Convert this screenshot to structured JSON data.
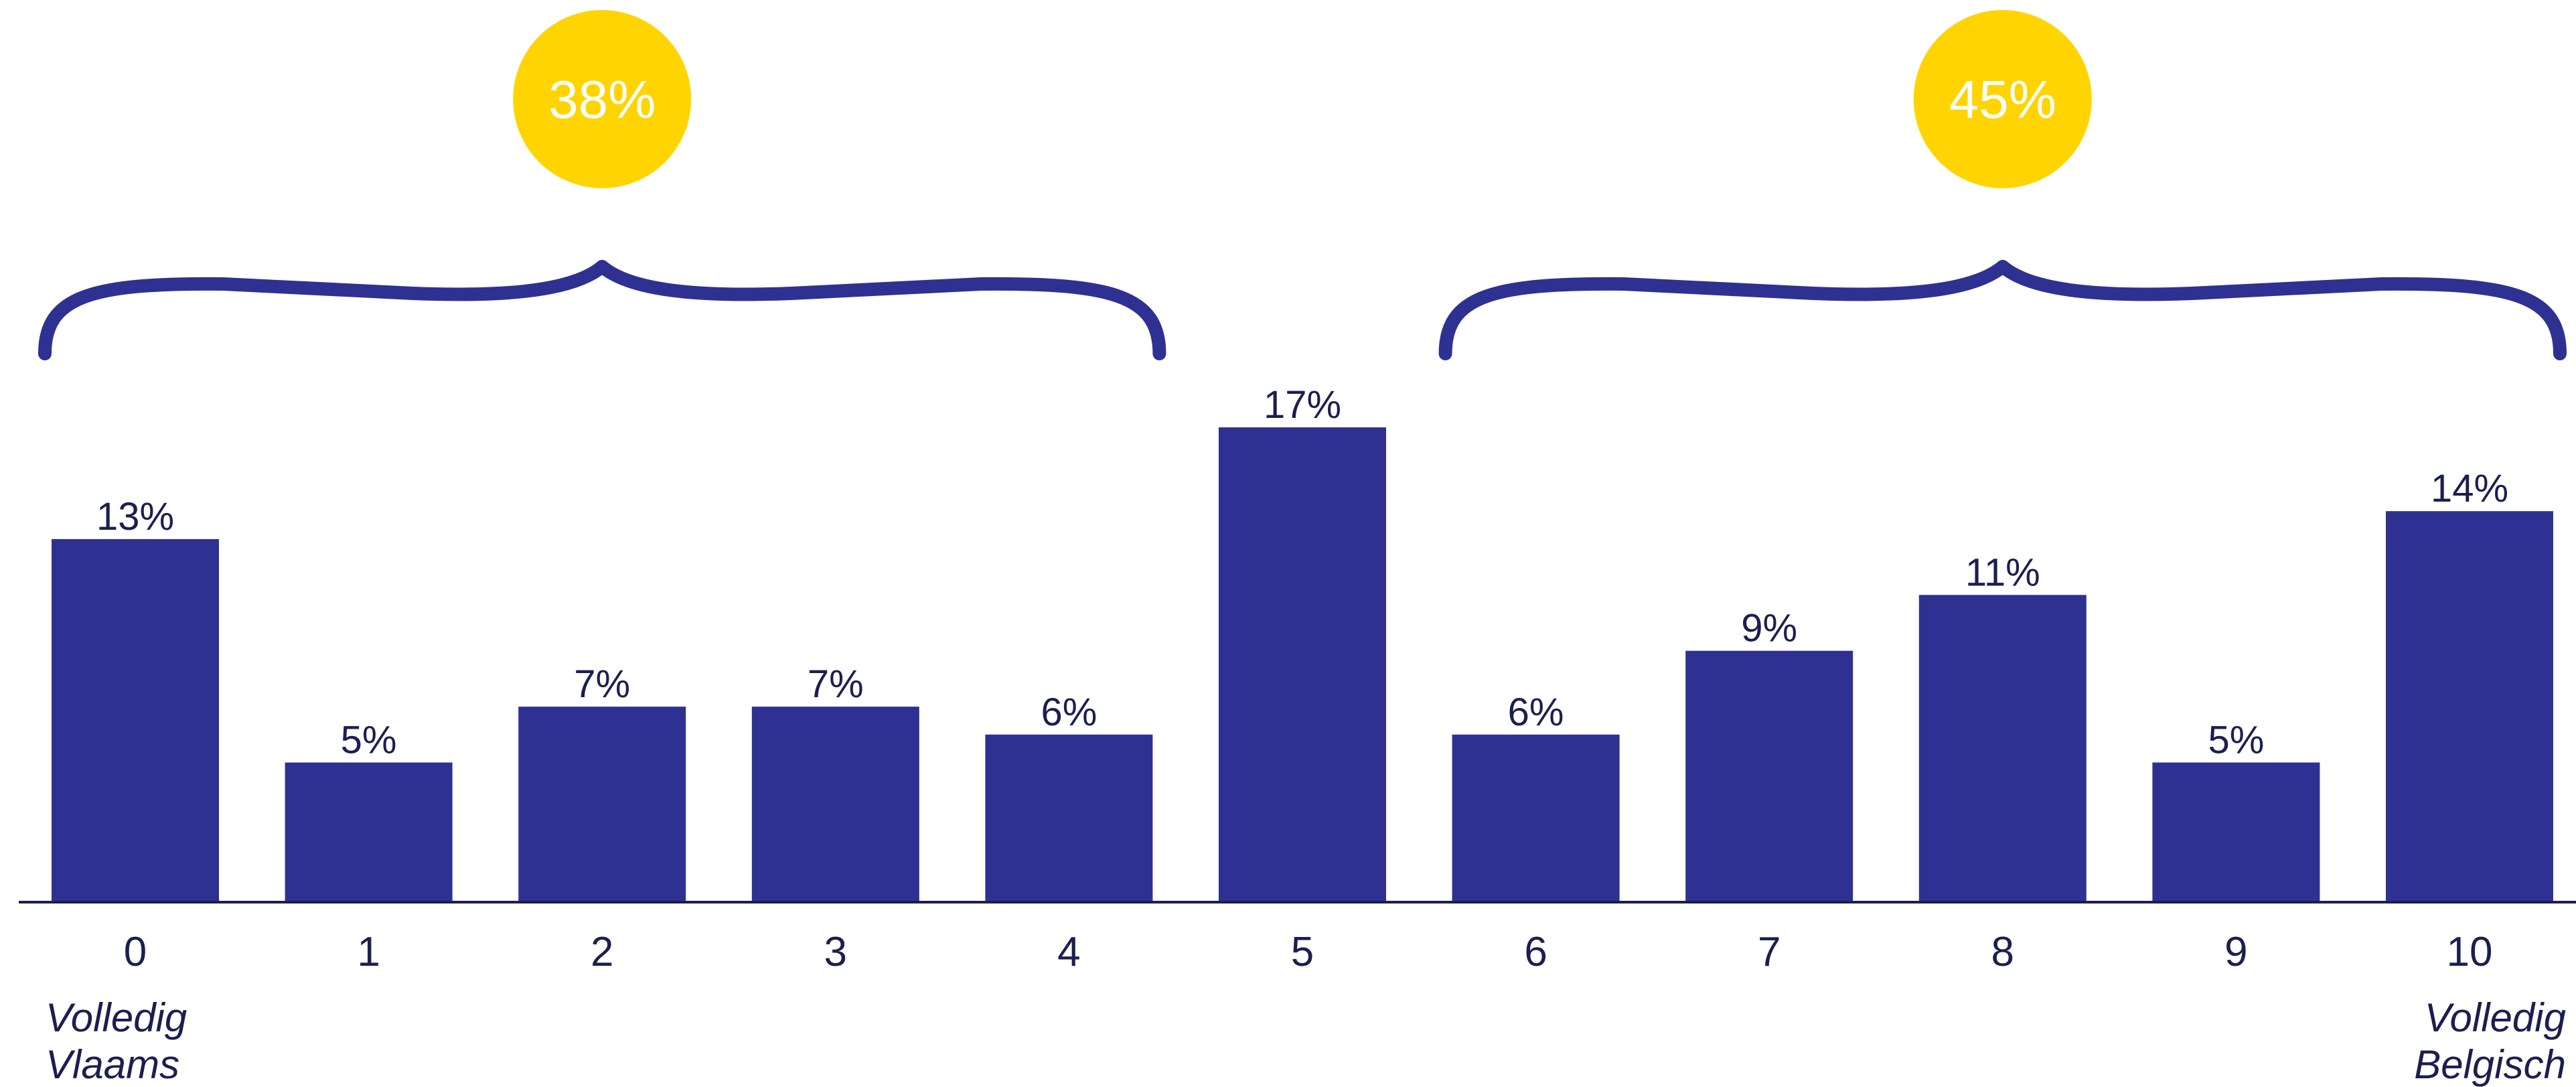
{
  "chart_data": {
    "type": "bar",
    "categories": [
      "0",
      "1",
      "2",
      "3",
      "4",
      "5",
      "6",
      "7",
      "8",
      "9",
      "10"
    ],
    "values": [
      13,
      5,
      7,
      7,
      6,
      17,
      6,
      9,
      11,
      5,
      14
    ],
    "value_labels": [
      "13%",
      "5%",
      "7%",
      "7%",
      "6%",
      "17%",
      "6%",
      "9%",
      "11%",
      "5%",
      "14%"
    ],
    "ylim": [
      0,
      17
    ],
    "grid": false,
    "title": "",
    "xlabel": "",
    "ylabel": "",
    "end_labels": {
      "left": [
        "Volledig",
        "Vlaams"
      ],
      "right": [
        "Volledig",
        "Belgisch"
      ]
    },
    "groups": [
      {
        "label": "38%",
        "from": 0,
        "to": 4
      },
      {
        "label": "45%",
        "from": 6,
        "to": 10
      }
    ]
  },
  "colors": {
    "bar": "#2e3192",
    "brace": "#2e3192",
    "badge": "#ffd400",
    "text": "#1b1f4f",
    "axis": "#1b1f4f"
  }
}
